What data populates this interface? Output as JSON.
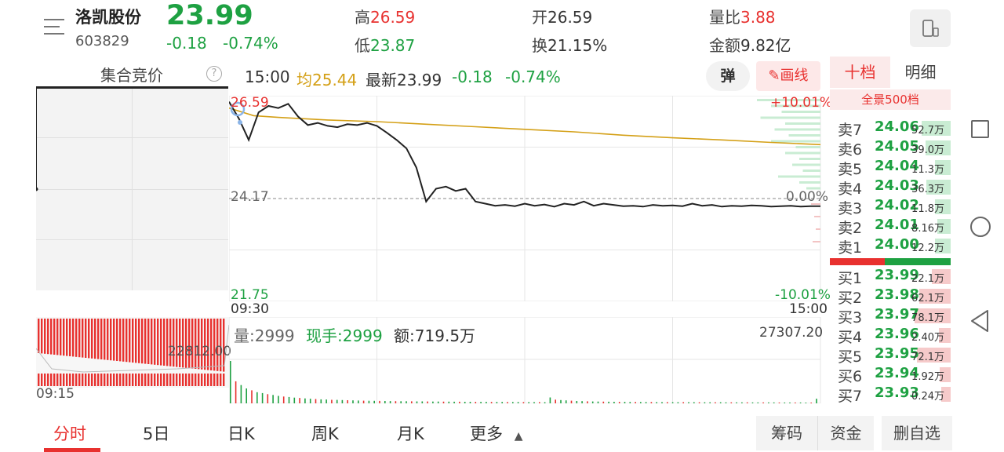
{
  "header": {
    "stock_name": "洛凯股份",
    "stock_code": "603829",
    "price": "23.99",
    "change": "-0.18",
    "change_pct": "-0.74%",
    "high_label": "高",
    "high_value": "26.59",
    "low_label": "低",
    "low_value": "23.87",
    "open_label": "开",
    "open_value": "26.59",
    "turnover_label": "换",
    "turnover_value": "21.15%",
    "volume_ratio_label": "量比",
    "volume_ratio_value": "3.88",
    "amount_label": "金额",
    "amount_value": "9.82亿"
  },
  "auction": {
    "title": "集合竞价",
    "help": "?",
    "volume_value": "22812.00",
    "time_label": "09:15"
  },
  "chart_info": {
    "time": "15:00",
    "avg_label": "均",
    "avg_value": "25.44",
    "latest_label": "最新",
    "latest_value": "23.99",
    "change": "-0.18",
    "change_pct": "-0.74%",
    "tan_label": "弹",
    "draw_label": "画线"
  },
  "volume_info": {
    "volume_label": "量:",
    "volume_value": "2999",
    "hand_label": "现手:",
    "hand_value": "2999",
    "amount_label": "额:",
    "amount_value": "719.5万",
    "max_value": "27307.20"
  },
  "chart_data": {
    "type": "line",
    "prev_close": 24.17,
    "y_top": 26.59,
    "y_bottom": 21.75,
    "top_pct": "+10.01%",
    "mid_pct": "0.00%",
    "bottom_pct": "-10.01%",
    "y_top_label": "26.59",
    "y_mid_label": "24.17",
    "y_bottom_label": "21.75",
    "x_start_label": "09:30",
    "x_end_label": "15:00",
    "ylim": [
      21.75,
      26.59
    ],
    "grid": true,
    "colors": {
      "price": "#222222",
      "avg": "#d4a017",
      "up": "#e8312f",
      "down": "#1ea142"
    },
    "series": [
      {
        "x": [
          0,
          4,
          8,
          12,
          16,
          20,
          24,
          28,
          32,
          36,
          40,
          44,
          48,
          52,
          56,
          60,
          64,
          68,
          72,
          76,
          80,
          84,
          88,
          92,
          96,
          100,
          104,
          108,
          112,
          116,
          120,
          124,
          128,
          132,
          136,
          140,
          144,
          148,
          152,
          156,
          160,
          164,
          168,
          172,
          176,
          180,
          184,
          188,
          192,
          196,
          200,
          204,
          208,
          212,
          216,
          220,
          224,
          228,
          232,
          236,
          240
        ],
        "values": [
          26.45,
          26.05,
          25.55,
          26.2,
          26.35,
          26.3,
          26.4,
          26.1,
          25.9,
          25.95,
          25.88,
          25.85,
          25.92,
          25.9,
          25.95,
          25.88,
          25.72,
          25.55,
          25.35,
          24.9,
          24.1,
          24.4,
          24.45,
          24.35,
          24.4,
          24.1,
          24.05,
          24.0,
          24.02,
          23.99,
          24.05,
          24.0,
          24.03,
          23.98,
          24.05,
          24.02,
          24.1,
          24.0,
          24.05,
          24.02,
          23.99,
          24.0,
          23.98,
          24.02,
          24.0,
          24.01,
          23.99,
          24.05,
          24.0,
          24.02,
          23.98,
          24.0,
          23.99,
          24.01,
          24.0,
          23.98,
          23.99,
          24.0,
          23.98,
          23.99,
          23.99
        ]
      },
      {
        "x": [
          0,
          10,
          20,
          40,
          60,
          80,
          100,
          120,
          140,
          160,
          180,
          200,
          220,
          240
        ],
        "values": [
          26.3,
          26.12,
          26.08,
          26.02,
          25.98,
          25.92,
          25.86,
          25.8,
          25.74,
          25.66,
          25.6,
          25.55,
          25.49,
          25.44
        ]
      }
    ],
    "volume_max": 27307.2,
    "volume": [
      27307,
      14200,
      11800,
      9600,
      8400,
      7200,
      6600,
      5900,
      5400,
      4800,
      4400,
      4100,
      3700,
      3500,
      3200,
      3000,
      2800,
      2600,
      2500,
      2300,
      2200,
      2100,
      2000,
      1900,
      1800,
      1700,
      1650,
      1600,
      1550,
      1500,
      1450,
      1400,
      1380,
      1350,
      1300,
      1280,
      1250,
      1200,
      1180,
      1150,
      1120,
      1100,
      1080,
      1050,
      1030,
      1000,
      980,
      960,
      950,
      930,
      920,
      900,
      880,
      860,
      850,
      830,
      820,
      800,
      790,
      780,
      3800,
      2400,
      2100,
      1900,
      1700,
      1500,
      1400,
      1300,
      1200,
      1150,
      1100,
      1050,
      1000,
      980,
      950,
      920,
      900,
      880,
      860,
      840,
      820,
      800,
      790,
      780,
      770,
      760,
      750,
      740,
      730,
      720,
      710,
      700,
      690,
      680,
      670,
      660,
      650,
      640,
      630,
      620,
      610,
      600,
      590,
      580,
      570,
      560,
      550,
      540,
      530,
      520,
      2999
    ]
  },
  "order_book": {
    "tab_ten": "十档",
    "tab_detail": "明细",
    "full_view": "全景500档",
    "sells": [
      {
        "label": "卖7",
        "price": "24.06",
        "volume": "52.7万",
        "bar": 0.55
      },
      {
        "label": "卖6",
        "price": "24.05",
        "volume": "39.0万",
        "bar": 0.45
      },
      {
        "label": "卖5",
        "price": "24.04",
        "volume": "11.3万",
        "bar": 0.2
      },
      {
        "label": "卖4",
        "price": "24.03",
        "volume": "36.3万",
        "bar": 0.42
      },
      {
        "label": "卖3",
        "price": "24.02",
        "volume": "11.8万",
        "bar": 0.2
      },
      {
        "label": "卖2",
        "price": "24.01",
        "volume": "8.16万",
        "bar": 0.15
      },
      {
        "label": "卖1",
        "price": "24.00",
        "volume": "12.2万",
        "bar": 0.2
      }
    ],
    "buys": [
      {
        "label": "买1",
        "price": "23.99",
        "volume": "22.1万",
        "bar": 0.28
      },
      {
        "label": "买2",
        "price": "23.98",
        "volume": "62.1万",
        "bar": 0.6
      },
      {
        "label": "买3",
        "price": "23.97",
        "volume": "78.1万",
        "bar": 0.72
      },
      {
        "label": "买4",
        "price": "23.96",
        "volume": "2.40万",
        "bar": 0.1
      },
      {
        "label": "买5",
        "price": "23.95",
        "volume": "72.1万",
        "bar": 0.66
      },
      {
        "label": "买6",
        "price": "23.94",
        "volume": "1.92万",
        "bar": 0.08
      },
      {
        "label": "买7",
        "price": "23.93",
        "volume": "0.24万",
        "bar": 0.04
      }
    ]
  },
  "bottom_tabs": {
    "intraday": "分时",
    "five_day": "5日",
    "daily": "日K",
    "weekly": "周K",
    "monthly": "月K",
    "more": "更多",
    "chips": "筹码",
    "funds": "资金",
    "delete": "删自选"
  }
}
